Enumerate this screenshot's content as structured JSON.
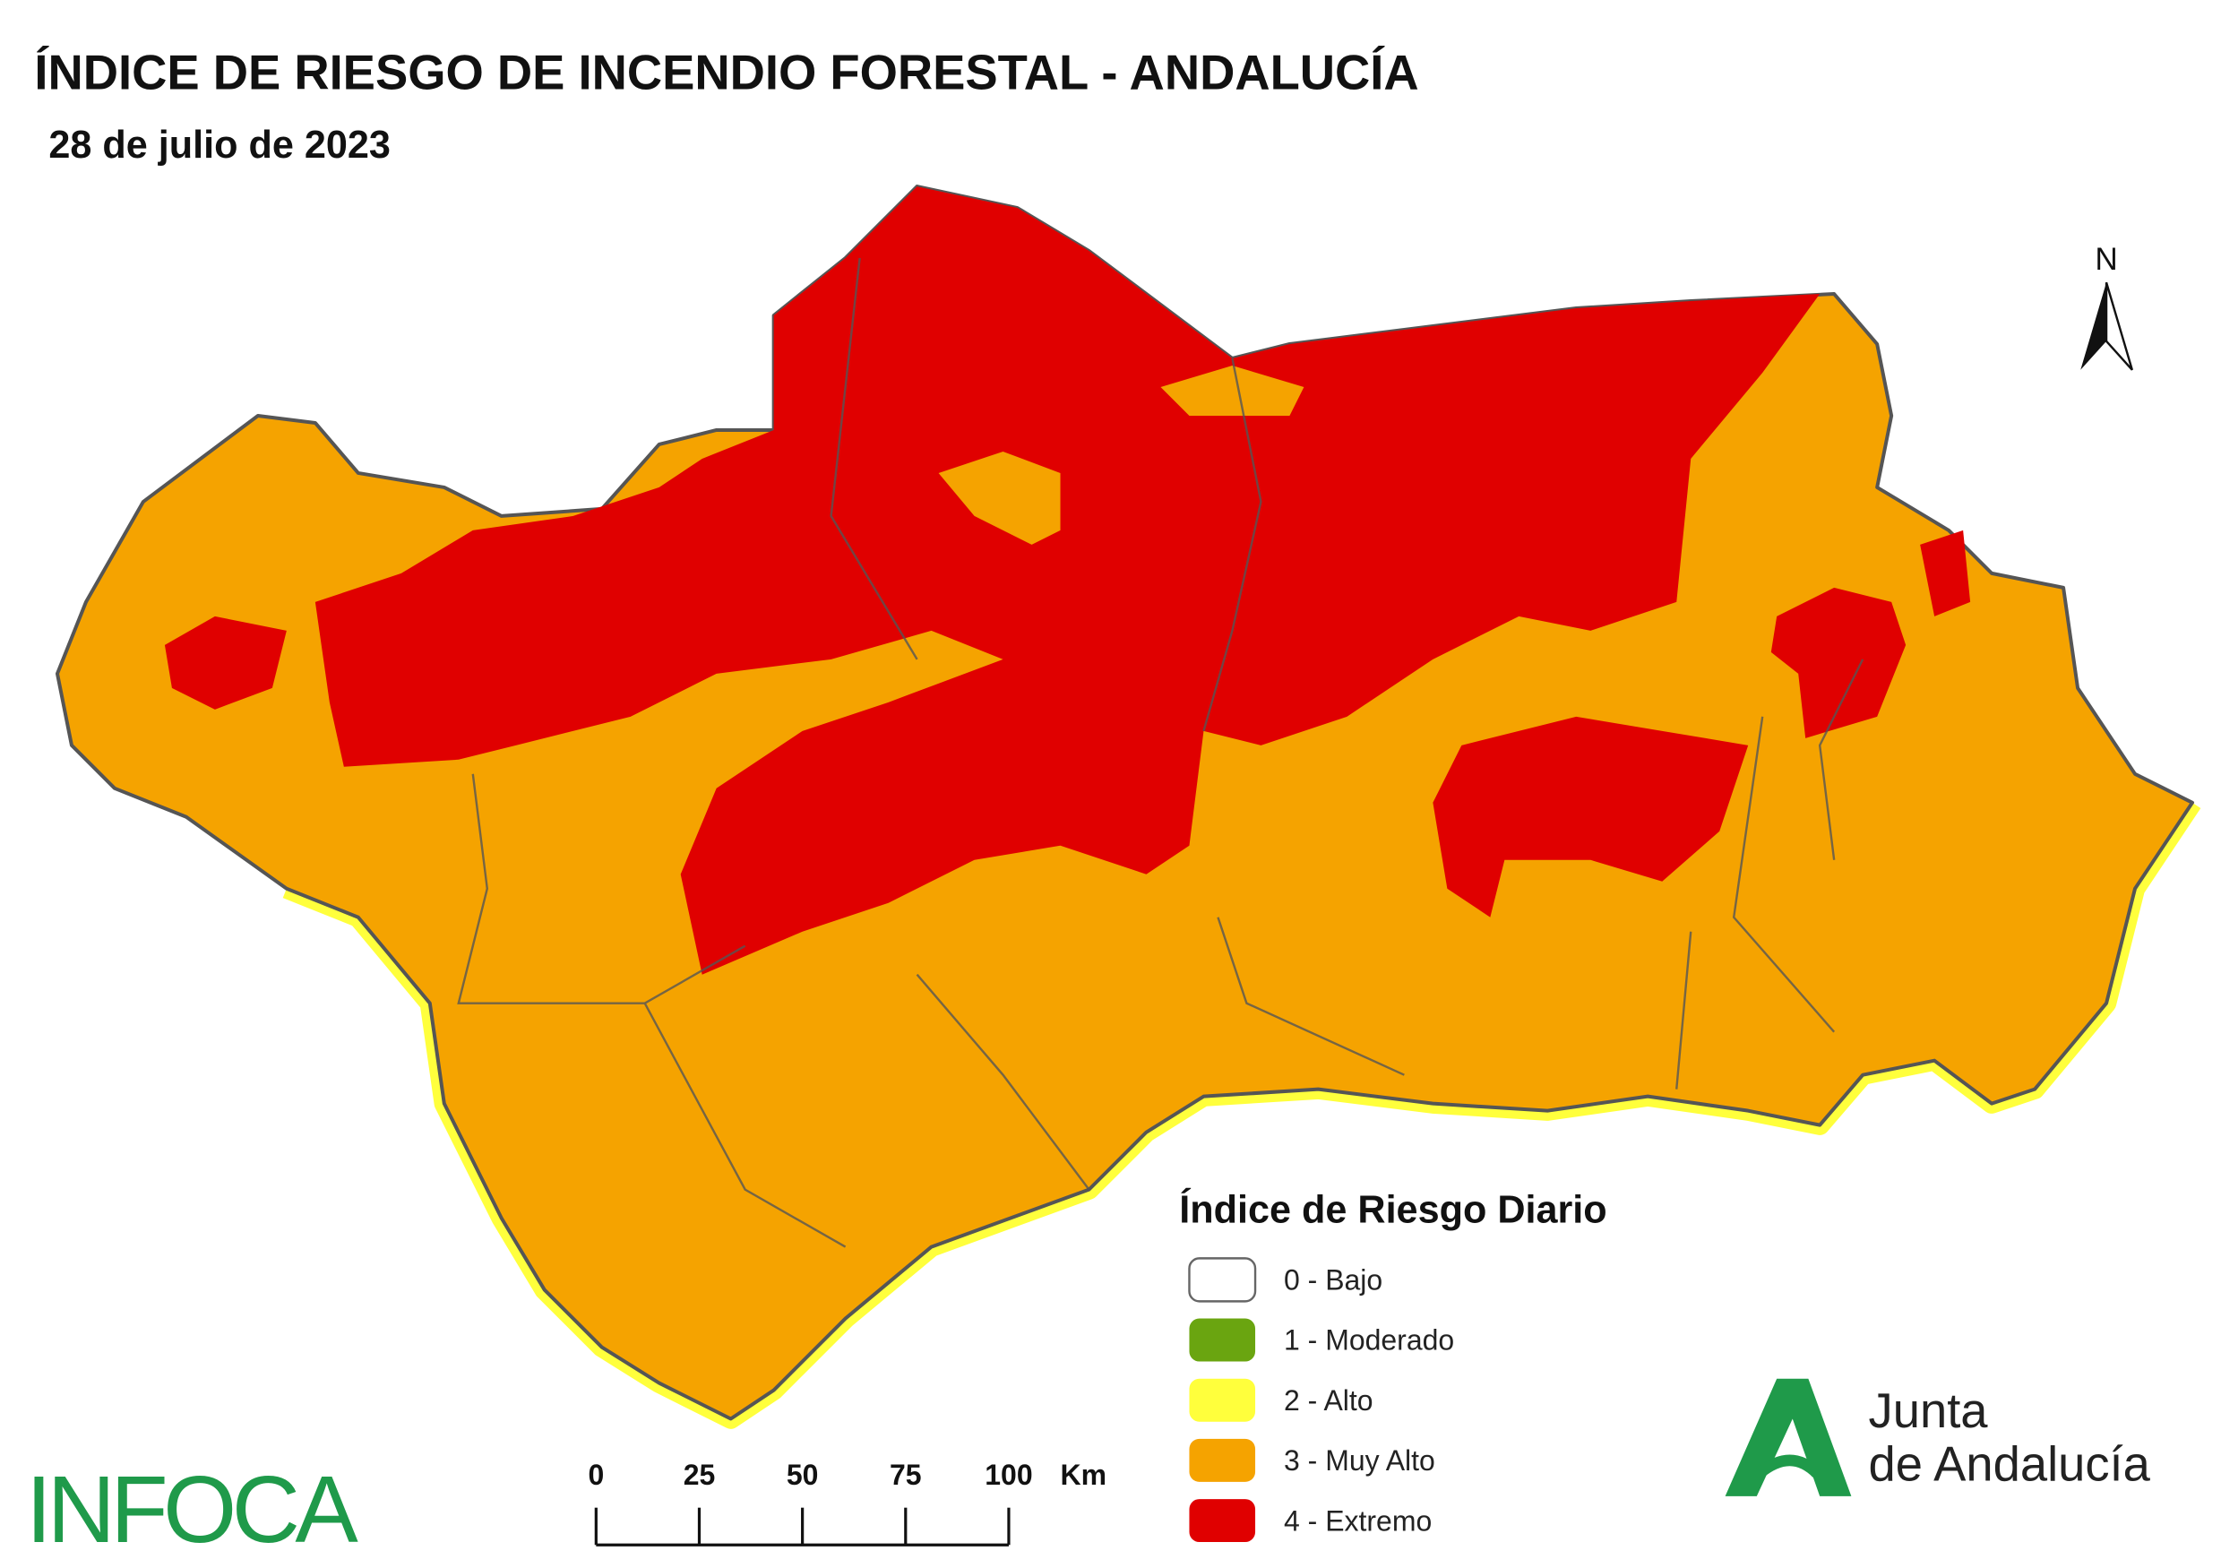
{
  "header": {
    "title": "ÍNDICE DE RIESGO DE INCENDIO FORESTAL - ANDALUCÍA",
    "subtitle": "28 de julio de 2023"
  },
  "north_arrow": {
    "label": "N"
  },
  "legend": {
    "title": "Índice de Riesgo Diario",
    "items": [
      {
        "label": "0 - Bajo",
        "color": "#ffffff"
      },
      {
        "label": "1 - Moderado",
        "color": "#6aa510"
      },
      {
        "label": "2 - Alto",
        "color": "#ffff3c"
      },
      {
        "label": "3 - Muy Alto",
        "color": "#f5a300"
      },
      {
        "label": "4 - Extremo",
        "color": "#e00000"
      }
    ]
  },
  "scale_bar": {
    "ticks": [
      0,
      25,
      50,
      75,
      100
    ],
    "unit": "Km"
  },
  "logos": {
    "infoca": "INFOCA",
    "junta": [
      "Junta",
      "de Andalucía"
    ]
  }
}
